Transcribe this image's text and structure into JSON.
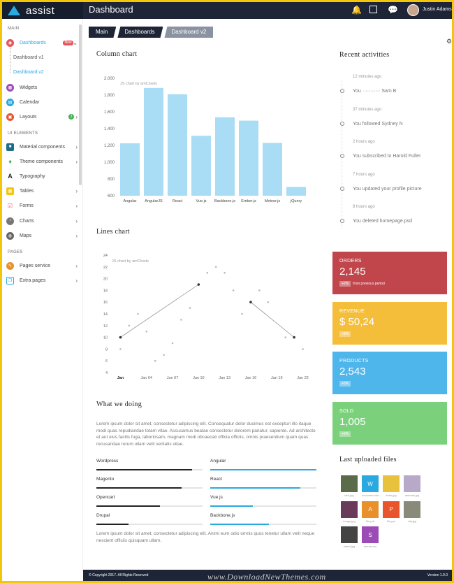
{
  "app": {
    "logo": "assist",
    "page_title": "Dashboard",
    "user_name": "Justin Adams"
  },
  "sidebar": {
    "section_main": "MAIN",
    "section_elements": "UI ELEMENTS",
    "section_pages": "PAGES",
    "dashboards": "Dashboards",
    "dashboards_badge": "New",
    "dashboard_v1": "Dashboard v1",
    "dashboard_v2": "Dashboard v2",
    "widgets": "Widgets",
    "calendar": "Calendar",
    "layouts": "Layouts",
    "layouts_badge": "3",
    "material": "Material components",
    "theme": "Theme components",
    "typography": "Typography",
    "tables": "Tables",
    "forms": "Forms",
    "charts": "Charts",
    "maps": "Maps",
    "pages_service": "Pages service",
    "extra_pages": "Extra pages"
  },
  "breadcrumb": [
    "Main",
    "Dashboards",
    "Dashboard v2"
  ],
  "column_chart": {
    "title": "Column chart",
    "credit": "JS chart by amCharts",
    "chart_data": {
      "type": "bar",
      "categories": [
        "Angular",
        "AngularJS",
        "React",
        "Vue.js",
        "Backbone.js",
        "Ember.js",
        "Meteor.js",
        "jQuery"
      ],
      "values": [
        1225,
        1885,
        1810,
        1315,
        1535,
        1495,
        1230,
        705
      ],
      "ylim": [
        600,
        2000
      ],
      "yticks": [
        "2,000",
        "1,800",
        "1,600",
        "1,400",
        "1,200",
        "1,000",
        "800",
        "600"
      ],
      "color": "#a9dcf5"
    }
  },
  "lines_chart": {
    "title": "Lines chart",
    "credit": "JS chart by amCharts",
    "chart_data": {
      "type": "scatter",
      "yticks": [
        "24",
        "22",
        "20",
        "18",
        "16",
        "14",
        "12",
        "10",
        "8",
        "6",
        "4"
      ],
      "xticks": [
        "Jan",
        "Jan 04",
        "Jan 07",
        "Jan 10",
        "Jan 13",
        "Jan 16",
        "Jan 19",
        "Jan 22"
      ],
      "ylim": [
        4,
        24
      ],
      "scatter_points": [
        [
          1,
          8
        ],
        [
          2,
          12
        ],
        [
          3,
          14
        ],
        [
          4,
          11
        ],
        [
          5,
          6
        ],
        [
          6,
          7
        ],
        [
          7,
          9
        ],
        [
          8,
          13
        ],
        [
          9,
          15
        ],
        [
          11,
          21
        ],
        [
          12,
          22
        ],
        [
          13,
          21
        ],
        [
          14,
          18
        ],
        [
          15,
          14
        ],
        [
          17,
          18
        ],
        [
          18,
          16
        ],
        [
          20,
          10
        ],
        [
          22,
          8
        ]
      ],
      "line_segments": [
        [
          [
            1,
            10
          ],
          [
            10,
            19
          ]
        ],
        [
          [
            16,
            16
          ],
          [
            21,
            10
          ]
        ]
      ]
    }
  },
  "activities": {
    "title": "Recent activities",
    "items": [
      {
        "time": "12 minutes ago",
        "text": "You ··········· Sam B"
      },
      {
        "time": "37 minutes ago",
        "text": "You followed Sydney N"
      },
      {
        "time": "2 hours ago",
        "text": "You subscribed to Harold Fuller"
      },
      {
        "time": "7 hours ago",
        "text": "You updated your profile picture"
      },
      {
        "time": "8 hours ago",
        "text": "You deleted homepage.psd"
      }
    ]
  },
  "stats": [
    {
      "label": "ORDERS",
      "value": "2,145",
      "chip": "+2%",
      "sub": "from previous period",
      "color": "#c0464c"
    },
    {
      "label": "REVENUE",
      "value": "$ 50,24",
      "chip": "+8%",
      "sub": "",
      "color": "#f4be3a"
    },
    {
      "label": "PRODUCTS",
      "value": "2,543",
      "chip": "+5%",
      "sub": "",
      "color": "#4fb6ec"
    },
    {
      "label": "SOLD",
      "value": "1,005",
      "chip": "+3%",
      "sub": "",
      "color": "#7bd17b"
    }
  ],
  "what_we_doing": {
    "title": "What we doing",
    "intro": "Lorem ipsum dolor sit amet, consectetur adipiscing elit. Consequatur dolor ducimus est excepturi illo itaque modi quas repudiandae totam vitae. Accusamus beatae consectetur dolorem pariatur, sapiente. Ad architecto et aut eius facilis fuga, laboriosam, magnam modi obcaecati officia officiis, omnis praesentium quam quas recusandae rerum ullam velit veritatis vitae.",
    "outro": "Lorem ipsum dolor sit amet, consectetur adipiscing elit. Animi eum odio omnis quos tenetur ullam velit neque nescient officiis quisquam ullam.",
    "skills_left": [
      {
        "name": "Wordpress",
        "value": 0.9
      },
      {
        "name": "Magento",
        "value": 0.8
      },
      {
        "name": "Opencart",
        "value": 0.6
      },
      {
        "name": "Drupal",
        "value": 0.3
      }
    ],
    "skills_right": [
      {
        "name": "Angular",
        "value": 1.0
      },
      {
        "name": "React",
        "value": 0.85
      },
      {
        "name": "Vue.js",
        "value": 0.4
      },
      {
        "name": "Backbone.js",
        "value": 0.55
      }
    ]
  },
  "files": {
    "title": "Last uploaded files",
    "items": [
      {
        "name": "bird.jpg",
        "color": "#5b6b4a",
        "icon": ""
      },
      {
        "name": "document.doc",
        "color": "#29a9e0",
        "icon": "W"
      },
      {
        "name": "fruits.jpg",
        "color": "#e8c23c",
        "icon": ""
      },
      {
        "name": "animals.jpg",
        "color": "#b7a9c8",
        "icon": ""
      },
      {
        "name": "image.jpg",
        "color": "#6a3a5a",
        "icon": ""
      },
      {
        "name": "file.pdf",
        "color": "#e8902c",
        "icon": "A"
      },
      {
        "name": "file.ppt",
        "color": "#e8552c",
        "icon": "P"
      },
      {
        "name": "city.jpg",
        "color": "#8a8a7a",
        "icon": ""
      },
      {
        "name": "street.jpg",
        "color": "#444",
        "icon": ""
      },
      {
        "name": "theme.css",
        "color": "#9b4bb5",
        "icon": "S"
      }
    ]
  },
  "footer": {
    "left": "© Copyright 2017. All Rights Reserved",
    "right": "Version 1.0.0"
  },
  "watermark": "www.DownloadNewThemes.com"
}
